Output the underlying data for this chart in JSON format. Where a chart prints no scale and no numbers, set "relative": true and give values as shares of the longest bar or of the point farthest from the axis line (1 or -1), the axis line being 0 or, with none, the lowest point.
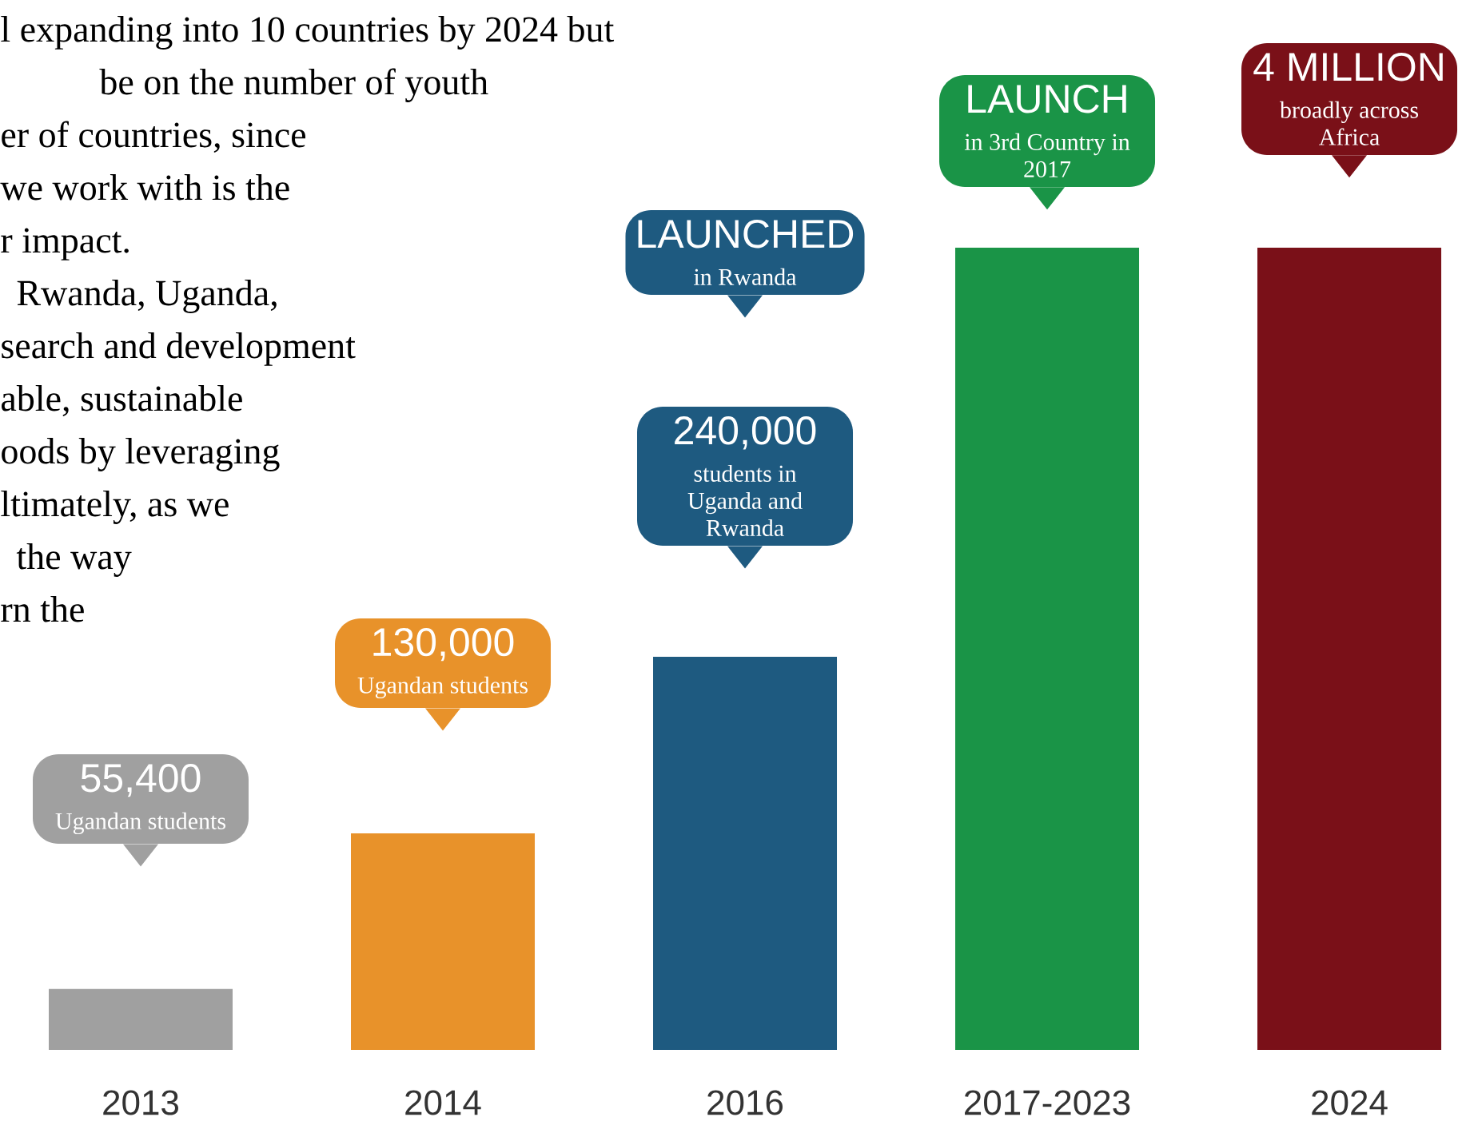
{
  "chart_data": {
    "type": "bar",
    "relative": true,
    "categories": [
      "2013",
      "2014",
      "2016",
      "2017-2023",
      "2024"
    ],
    "values": [
      0.076,
      0.27,
      0.49,
      1.0,
      1.0
    ],
    "colors": [
      "#a0a0a0",
      "#e8922a",
      "#1e5a80",
      "#1a9447",
      "#7a1018"
    ],
    "annotations": [
      "l expanding into 10 countries by 2024 but",
      "be on the number of youth",
      "er of countries, since",
      "we work with is the",
      "r impact.",
      "Rwanda, Uganda,",
      "search and development",
      "able, sustainable",
      "oods by leveraging",
      "ltimately, as we",
      "the way",
      "rn the",
      "55,400",
      "Ugandan students",
      "130,000",
      "Ugandan students",
      "LAUNCHED",
      "in Rwanda",
      "240,000",
      "students in Uganda and Rwanda",
      "LAUNCH",
      "in 3rd Country in 2017",
      "4 MILLION",
      "broadly across Africa"
    ]
  }
}
